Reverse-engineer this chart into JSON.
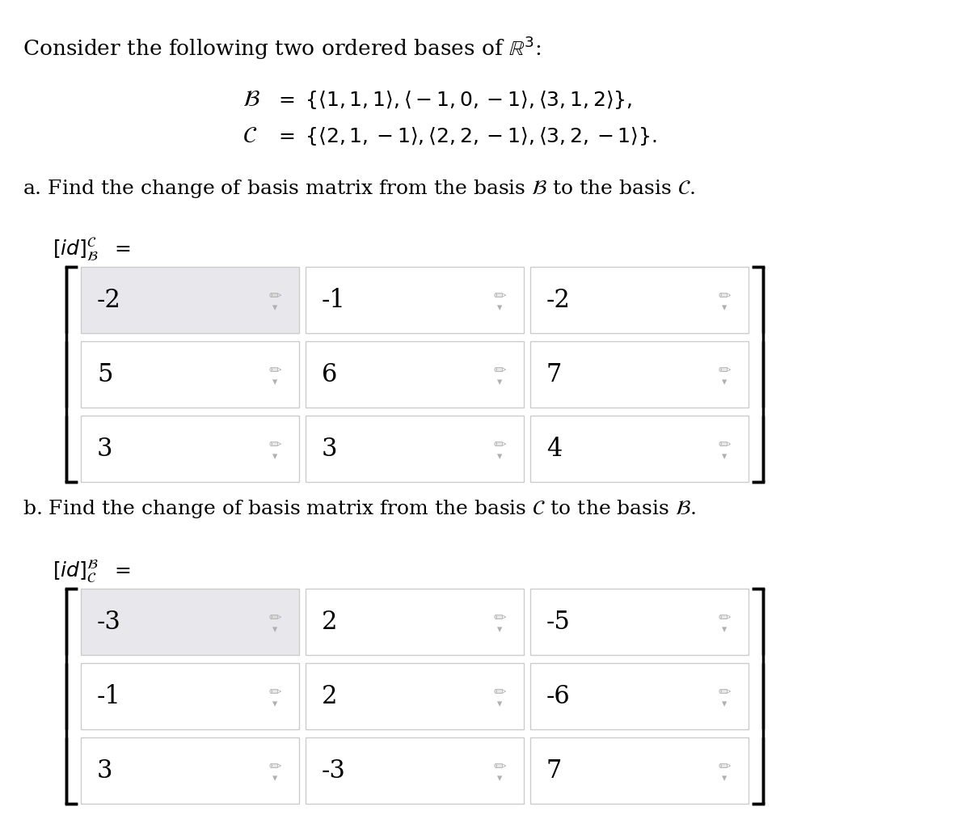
{
  "matrix_a": [
    [
      -2,
      -1,
      -2
    ],
    [
      5,
      6,
      7
    ],
    [
      3,
      3,
      4
    ]
  ],
  "matrix_b": [
    [
      -3,
      2,
      -5
    ],
    [
      -1,
      2,
      -6
    ],
    [
      3,
      -3,
      7
    ]
  ],
  "cell_bg_normal": "#ffffff",
  "cell_bg_highlight": "#e8e8ec",
  "cell_border": "#cccccc",
  "text_color": "#000000",
  "pencil_color": "#b0b0b0",
  "bg_color": "#ffffff",
  "font_size_title": 19,
  "font_size_basis": 18,
  "font_size_part": 18,
  "font_size_label": 15,
  "font_size_matrix_num": 22,
  "font_size_pencil": 13
}
